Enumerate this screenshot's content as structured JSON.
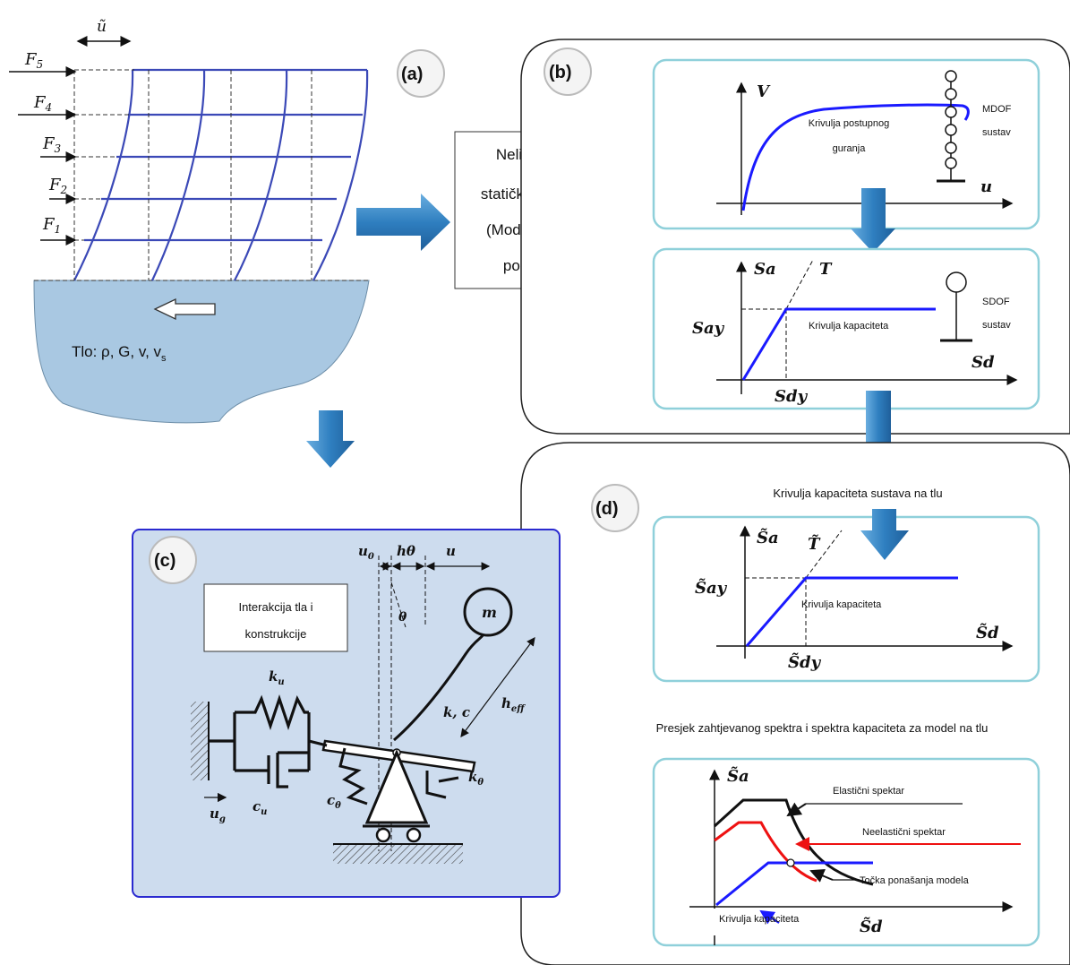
{
  "panels": {
    "a": {
      "badge": "(a)",
      "drift": "ũ",
      "forces": [
        "F5",
        "F4",
        "F3",
        "F2",
        "F1"
      ],
      "soil": "Tlo: ρ, G, v, vs"
    },
    "b": {
      "badge": "(b)",
      "mdof_chart": {
        "y_axis": "V",
        "x_axis": "u",
        "curve": [
          "Krivulja postupnog",
          "guranja"
        ],
        "system": [
          "MDOF",
          "sustav"
        ]
      },
      "sdof_chart": {
        "y_axis": "Sa",
        "slope": "T",
        "y_mark": "Say",
        "x_mark": "Sdy",
        "x_axis": "Sd",
        "curve": "Krivulja kapaciteta",
        "system": [
          "SDOF",
          "sustav"
        ]
      }
    },
    "analysis_box": [
      "Nelinearna",
      "statička analiza",
      "(Model upet u",
      "podlogu)"
    ],
    "c": {
      "badge": "(c)",
      "box": [
        "Interakcija tla i",
        "konstrukcije"
      ],
      "labels": {
        "u0": "u0",
        "htheta": "hθ",
        "u": "u",
        "theta": "θ",
        "m": "m",
        "kc": "k, c",
        "heff": "heff",
        "ku": "ku",
        "cu": "cu",
        "ctheta": "cθ",
        "ktheta": "kθ",
        "ug": "ug"
      }
    },
    "d": {
      "badge": "(d)",
      "title": "Krivulja kapaciteta sustava na tlu",
      "chart": {
        "y_axis": "S̃a",
        "slope": "T̃",
        "y_mark": "S̃ay",
        "x_mark": "S̃dy",
        "x_axis": "S̃d",
        "curve": "Krivulja kapaciteta"
      },
      "intersection_title": "Presjek zahtjevanog spektra i spektra kapaciteta za model na tlu",
      "spectra_chart": {
        "y_axis": "S̃a",
        "x_axis": "S̃d",
        "elastic": "Elastični spektar",
        "inelastic": "Neelastični spektar",
        "performance": "Točka ponašanja modela",
        "capacity": "Krivulja kapaciteta"
      }
    }
  },
  "colors": {
    "frame": "#3b49b7",
    "soil": "#a9c8e2",
    "arrow": "#2f7fc0",
    "curve": "#1a1aff",
    "inelastic": "#ee1111",
    "panel_c_bg": "#cddcee",
    "chart_border": "#8fd0da"
  }
}
